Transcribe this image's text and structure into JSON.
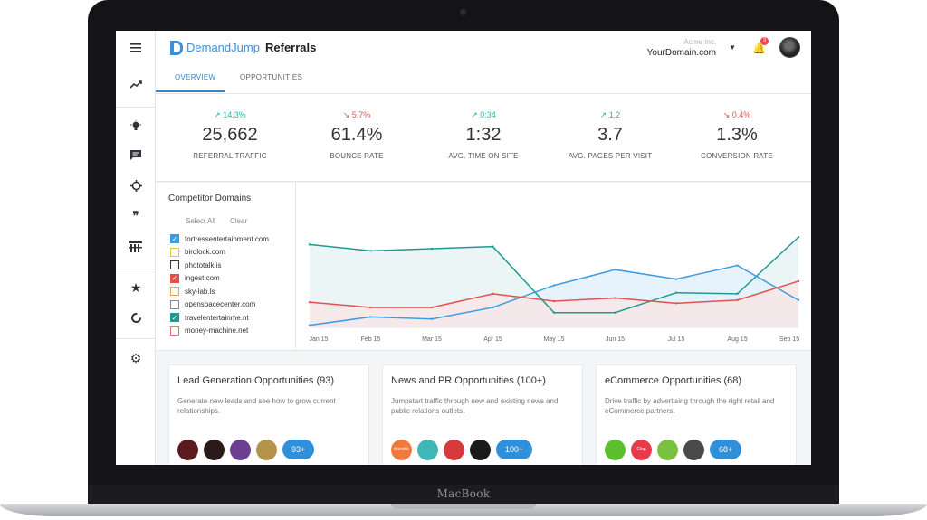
{
  "device": {
    "brand_label": "MacBook"
  },
  "app": {
    "logo_text": "DemandJump",
    "page_title": "Referrals",
    "account": {
      "org": "Acme Inc.",
      "domain": "YourDomain.com"
    },
    "notification_count": "3",
    "tabs": [
      {
        "label": "OVERVIEW",
        "active": true
      },
      {
        "label": "OPPORTUNITIES",
        "active": false
      }
    ]
  },
  "rail": {
    "icons": [
      "menu-icon",
      "trend-icon",
      "lightbulb-icon",
      "chat-icon",
      "target-icon",
      "quote-icon",
      "filter-icon",
      "star-icon",
      "refresh-icon",
      "gear-icon"
    ]
  },
  "kpis": [
    {
      "delta": "14.3%",
      "direction": "up",
      "value": "25,662",
      "label": "REFERRAL TRAFFIC"
    },
    {
      "delta": "5.7%",
      "direction": "down",
      "value": "61.4%",
      "label": "BOUNCE RATE"
    },
    {
      "delta": "0:34",
      "direction": "up",
      "value": "1:32",
      "label": "AVG. TIME ON SITE"
    },
    {
      "delta": "1.2",
      "direction": "up",
      "value": "3.7",
      "label": "AVG. PAGES PER VISIT"
    },
    {
      "delta": "0.4%",
      "direction": "down",
      "value": "1.3%",
      "label": "CONVERSION RATE"
    }
  ],
  "competitors": {
    "title": "Competitor Domains",
    "select_all": "Select All",
    "clear": "Clear",
    "items": [
      {
        "domain": "fortressentertainment.com",
        "checked": true,
        "color": "#3e9be0"
      },
      {
        "domain": "birdlock.com",
        "checked": false,
        "color": "#e6c341"
      },
      {
        "domain": "phototalk.is",
        "checked": false,
        "color": "#333333"
      },
      {
        "domain": "ingest.com",
        "checked": true,
        "color": "#e05252"
      },
      {
        "domain": "sky-lab.ls",
        "checked": false,
        "color": "#f0a050"
      },
      {
        "domain": "openspacecenter.com",
        "checked": false,
        "color": "#888888"
      },
      {
        "domain": "travelentertainme.nt",
        "checked": true,
        "color": "#1f9a8f"
      },
      {
        "domain": "money-machine.net",
        "checked": false,
        "color": "#e07070"
      }
    ]
  },
  "chart_data": {
    "type": "line",
    "categories": [
      "Jan 15",
      "Feb 15",
      "Mar 15",
      "Apr 15",
      "May 15",
      "Jun 15",
      "Jul 15",
      "Aug 15",
      "Sep 15"
    ],
    "ylim": [
      0,
      100
    ],
    "series": [
      {
        "name": "travelentertainme.nt",
        "color": "#1f9a8f",
        "fill": "#e9f3f4",
        "values": [
          79,
          73,
          75,
          77,
          14,
          14,
          33,
          32,
          86
        ]
      },
      {
        "name": "fortressentertainment.com",
        "color": "#3e9be0",
        "fill": "#e3f1fb",
        "values": [
          2,
          10,
          8,
          19,
          40,
          55,
          46,
          59,
          26
        ]
      },
      {
        "name": "ingest.com",
        "color": "#e05252",
        "fill": "#f8e6e8",
        "values": [
          24,
          19,
          19,
          32,
          25,
          28,
          23,
          26,
          44
        ]
      }
    ]
  },
  "cards": [
    {
      "title": "Lead Generation Opportunities (93)",
      "description": "Generate new leads and see how to grow current relationships.",
      "logos": [
        {
          "name": "brand-logo-1",
          "color": "#5a1b1f",
          "text": ""
        },
        {
          "name": "brand-logo-2",
          "color": "#2a1a1a",
          "text": ""
        },
        {
          "name": "brand-logo-3",
          "color": "#6a3f8f",
          "text": ""
        },
        {
          "name": "brand-logo-4",
          "color": "#b4944a",
          "text": ""
        }
      ],
      "more": "93+"
    },
    {
      "title": "News and PR Opportunities (100+)",
      "description": "Jumpstart traffic through new and existing news and public relations outlets.",
      "logos": [
        {
          "name": "blendio-logo",
          "color": "#f07a3e",
          "text": "blendio"
        },
        {
          "name": "brand-logo-6",
          "color": "#3fb7b7",
          "text": ""
        },
        {
          "name": "brand-logo-7",
          "color": "#d63a3a",
          "text": ""
        },
        {
          "name": "brand-logo-8",
          "color": "#1a1a1a",
          "text": ""
        }
      ],
      "more": "100+"
    },
    {
      "title": "eCommerce Opportunities (68)",
      "description": "Drive traffic by advertising through the right retail and eCommerce partners.",
      "logos": [
        {
          "name": "brand-logo-9",
          "color": "#5bbf2e",
          "text": ""
        },
        {
          "name": "clop-logo",
          "color": "#e73b4b",
          "text": "Clop"
        },
        {
          "name": "brand-logo-11",
          "color": "#7ac142",
          "text": ""
        },
        {
          "name": "brand-logo-12",
          "color": "#4a4a4a",
          "text": ""
        }
      ],
      "more": "68+"
    }
  ]
}
